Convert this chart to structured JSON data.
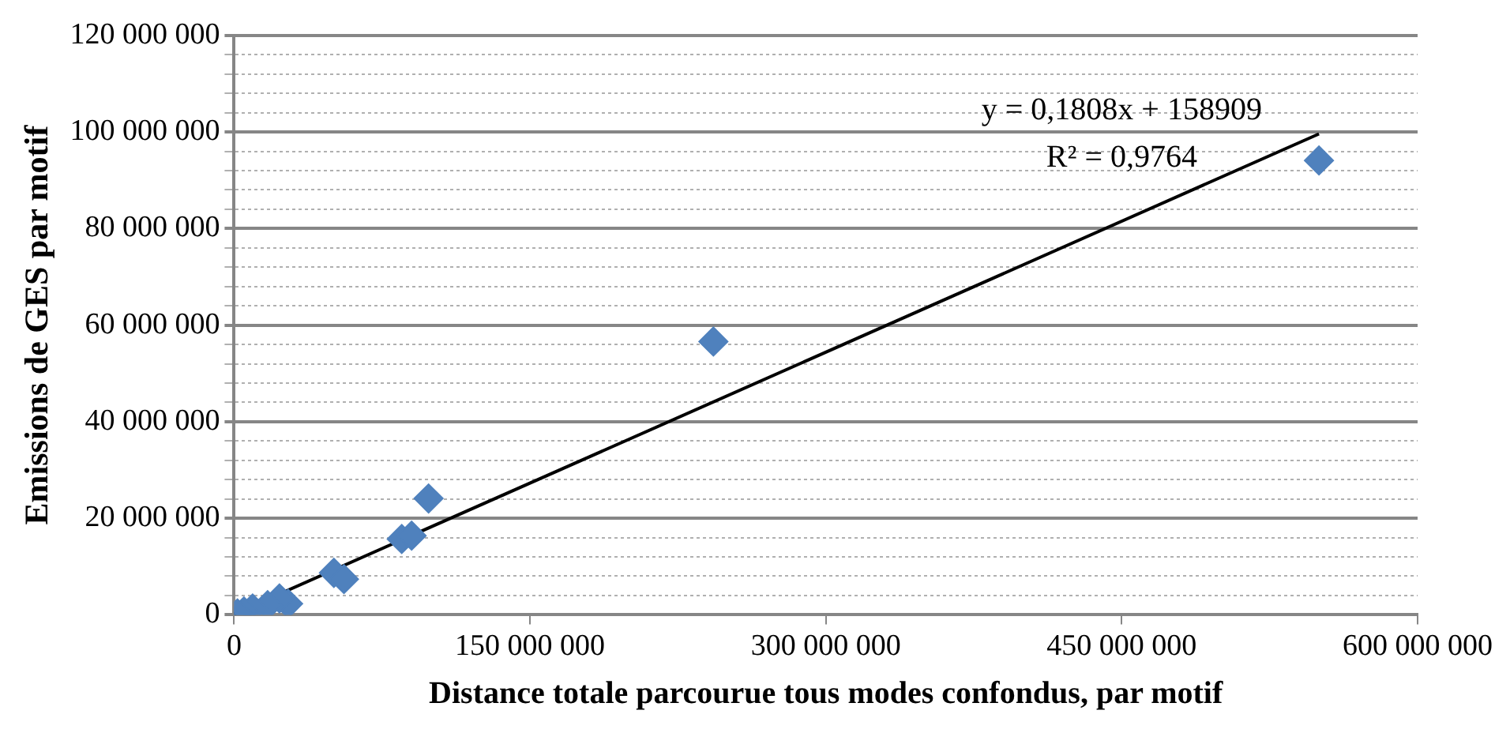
{
  "chart_data": {
    "type": "scatter",
    "xlabel": "Distance totale parcourue tous modes confondus, par motif",
    "ylabel": "Emissions de GES par motif",
    "series": [
      {
        "color": "#4f81bd",
        "marker": "diamond",
        "x": [
          550000000,
          243000000,
          98600000,
          85000000,
          90000000,
          50600000,
          55700000,
          27400000,
          23000000,
          17000000,
          9400000,
          5000000,
          1700000
        ],
        "values": [
          94100000,
          56600000,
          24100000,
          15700000,
          16400000,
          8700000,
          7400000,
          2300000,
          3400000,
          2000000,
          1300000,
          700000,
          300000
        ]
      },
      {
        "type": "line",
        "color": "#000000",
        "marker": "none",
        "line_style": "solid",
        "x": [
          0,
          550000000
        ],
        "values": [
          160000,
          99600000
        ]
      }
    ],
    "xlim": [
      0,
      600000000
    ],
    "xticks": [
      0,
      {
        "value": 150000000,
        "label": "150 000 000"
      },
      {
        "value": 300000000,
        "label": "300 000 000"
      },
      {
        "value": 450000000,
        "label": "450 000 000"
      },
      {
        "value": 600000000,
        "label": "600 000 000"
      }
    ],
    "ylim": [
      0,
      120000000
    ],
    "yticks": [
      0,
      {
        "value": 4000000,
        "label": null
      },
      {
        "value": 8000000,
        "label": null
      },
      {
        "value": 12000000,
        "label": null
      },
      {
        "value": 16000000,
        "label": null
      },
      {
        "value": 20000000,
        "label": "20 000 000"
      },
      {
        "value": 24000000,
        "label": null
      },
      {
        "value": 28000000,
        "label": null
      },
      {
        "value": 32000000,
        "label": null
      },
      {
        "value": 36000000,
        "label": null
      },
      {
        "value": 40000000,
        "label": "40 000 000"
      },
      {
        "value": 44000000,
        "label": null
      },
      {
        "value": 48000000,
        "label": null
      },
      {
        "value": 52000000,
        "label": null
      },
      {
        "value": 56000000,
        "label": null
      },
      {
        "value": 60000000,
        "label": "60 000 000"
      },
      {
        "value": 64000000,
        "label": null
      },
      {
        "value": 68000000,
        "label": null
      },
      {
        "value": 72000000,
        "label": null
      },
      {
        "value": 76000000,
        "label": null
      },
      {
        "value": 80000000,
        "label": "80 000 000"
      },
      {
        "value": 84000000,
        "label": null
      },
      {
        "value": 88000000,
        "label": null
      },
      {
        "value": 92000000,
        "label": null
      },
      {
        "value": 96000000,
        "label": null
      },
      {
        "value": 100000000,
        "label": "100 000 000"
      },
      {
        "value": 104000000,
        "label": null
      },
      {
        "value": 108000000,
        "label": null
      },
      {
        "value": 112000000,
        "label": null
      },
      {
        "value": 116000000,
        "label": null
      },
      {
        "value": 120000000,
        "label": "120 000 000"
      }
    ],
    "grid": "y",
    "legend": false,
    "annotations": [
      "y = 0,1808x + 158909",
      "R² = 0,9764"
    ]
  }
}
